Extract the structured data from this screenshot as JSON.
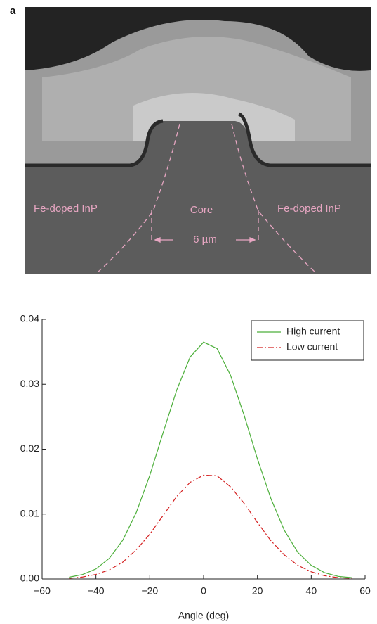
{
  "panel_label": "a",
  "image_labels": {
    "left": "Fe-doped InP",
    "core": "Core",
    "right": "Fe-doped InP",
    "width": "6 µm"
  },
  "chart_data": {
    "type": "line",
    "x": [
      -50,
      -45,
      -40,
      -35,
      -30,
      -25,
      -20,
      -15,
      -10,
      -5,
      0,
      5,
      10,
      15,
      20,
      25,
      30,
      35,
      40,
      45,
      50,
      55
    ],
    "series": [
      {
        "name": "High current",
        "color": "#4caf3a",
        "dash": "solid",
        "values": [
          0.00027,
          0.00068,
          0.00154,
          0.00319,
          0.00599,
          0.01025,
          0.01595,
          0.0226,
          0.0291,
          0.0342,
          0.0365,
          0.0355,
          0.0314,
          0.0253,
          0.0185,
          0.0124,
          0.0075,
          0.0041,
          0.0021,
          0.00096,
          0.0004,
          0.0002
        ]
      },
      {
        "name": "Low current",
        "color": "#d42020",
        "dash": "dashdot",
        "values": [
          0.0001,
          0.0003,
          0.0007,
          0.0014,
          0.0026,
          0.0045,
          0.0069,
          0.0098,
          0.0127,
          0.0149,
          0.016,
          0.0159,
          0.0142,
          0.0117,
          0.0087,
          0.0059,
          0.0037,
          0.0021,
          0.0011,
          0.0005,
          0.0002,
          0.0001
        ]
      }
    ],
    "xlabel": "Angle (deg)",
    "xlim": [
      -60,
      60
    ],
    "xticks": [
      {
        "value": -60,
        "label": "−60"
      },
      {
        "value": -40,
        "label": "−40"
      },
      {
        "value": -20,
        "label": "−20"
      },
      0,
      20,
      40,
      60
    ],
    "ylim": [
      0,
      0.04
    ],
    "yticks": [
      {
        "value": 0,
        "label": "0.00"
      },
      0.01,
      0.02,
      0.03,
      0.04
    ],
    "legend": "upper-right"
  }
}
